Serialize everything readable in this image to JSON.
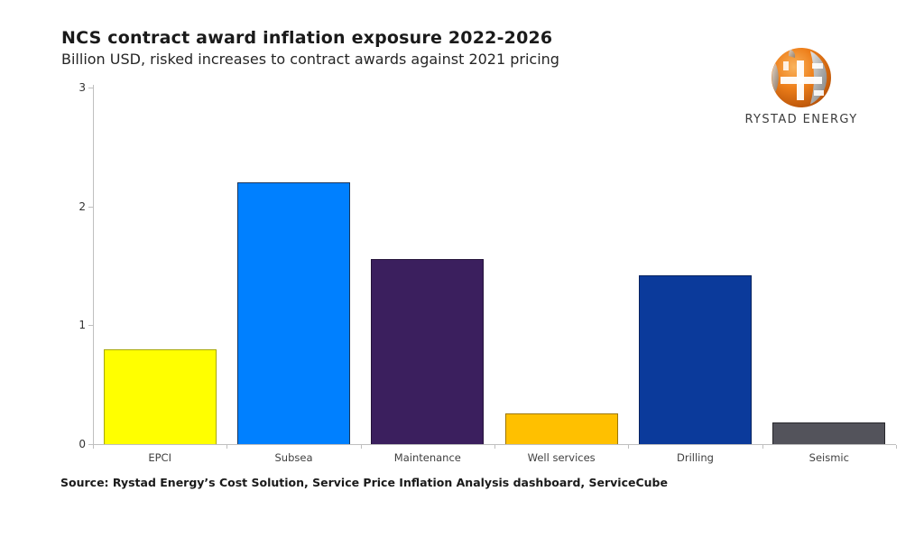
{
  "header": {
    "title": "NCS contract award inflation exposure 2022-2026",
    "subtitle": "Billion USD, risked increases to contract awards against 2021 pricing"
  },
  "logo": {
    "brand": "RYSTAD ENERGY",
    "globe_colors": {
      "orange": "#EE7F1A",
      "gray": "#9A9A9A",
      "white": "#FFFFFF"
    }
  },
  "chart_data": {
    "type": "bar",
    "title": "NCS contract award inflation exposure 2022-2026",
    "subtitle": "Billion USD, risked increases to contract awards against 2021 pricing",
    "categories": [
      "EPCI",
      "Subsea",
      "Maintenance",
      "Well services",
      "Drilling",
      "Seismic"
    ],
    "values": [
      0.8,
      2.2,
      1.56,
      0.26,
      1.42,
      0.18
    ],
    "bar_colors": [
      "#FFFF00",
      "#0080FF",
      "#3B1F5E",
      "#FFC000",
      "#0B3A9B",
      "#53535B"
    ],
    "bar_border_colors": [
      "#A8A800",
      "#17365D",
      "#241239",
      "#9C7500",
      "#07235F",
      "#26262B"
    ],
    "xlabel": "",
    "ylabel": "",
    "unit": "Billion USD",
    "ylim": [
      0,
      3
    ],
    "yticks": [
      0,
      1,
      2,
      3
    ],
    "grid": false,
    "legend": "none",
    "axis_color": "#BFBFBF"
  },
  "footer": {
    "source": "Source: Rystad Energy’s Cost Solution, Service Price Inflation Analysis dashboard, ServiceCube"
  }
}
